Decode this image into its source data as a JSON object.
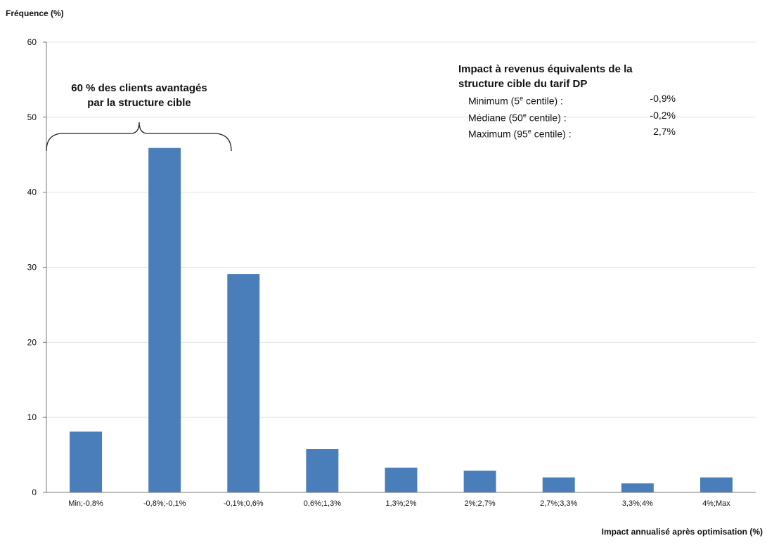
{
  "chart_data": {
    "type": "bar",
    "ylabel": "Fréquence (%)",
    "xlabel": "Impact annualisé après optimisation (%)",
    "categories": [
      "Min;-0,8%",
      "-0,8%;-0,1%",
      "-0,1%;0,6%",
      "0,6%;1,3%",
      "1,3%;2%",
      "2%;2,7%",
      "2,7%;3,3%",
      "3,3%;4%",
      "4%;Max"
    ],
    "values": [
      8.1,
      45.9,
      29.1,
      5.8,
      3.3,
      2.9,
      2.0,
      1.2,
      2.0
    ],
    "ylim": [
      0,
      60
    ],
    "yticks": [
      0,
      10,
      20,
      30,
      40,
      50,
      60
    ],
    "grid": true,
    "bar_color": "#4a7ebb",
    "annotation": {
      "bracket_text_line1": "60 % des clients avantagés",
      "bracket_text_line2": "par la structure cible"
    },
    "info_box": {
      "title_line1": "Impact à revenus équivalents de la",
      "title_line2": "structure cible du tarif DP",
      "rows": [
        {
          "pre": "Minimum (5",
          "sup": "e",
          "post": " centile) :",
          "value": "-0,9%"
        },
        {
          "pre": "Médiane (50",
          "sup": "e",
          "post": " centile) :",
          "value": "-0,2%"
        },
        {
          "pre": "Maximum (95",
          "sup": "e",
          "post": " centile) :",
          "value": "2,7%"
        }
      ]
    }
  }
}
